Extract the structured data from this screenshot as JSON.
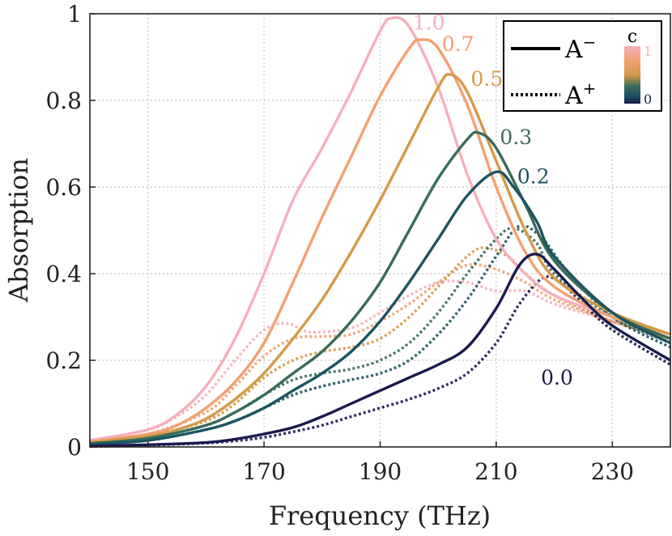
{
  "chart_data": {
    "type": "line",
    "xlabel": "Frequency (THz)",
    "ylabel": "Absorption",
    "xlim": [
      140,
      240
    ],
    "ylim": [
      0,
      1
    ],
    "xticks": [
      150,
      170,
      190,
      210,
      230
    ],
    "yticks": [
      0,
      0.2,
      0.4,
      0.6,
      0.8,
      1
    ],
    "ytick_labels": [
      "0",
      "0.2",
      "0.4",
      "0.6",
      "0.8",
      "1"
    ],
    "grid": true,
    "legend": {
      "position": "top-right",
      "entries": [
        {
          "label": "A",
          "sup": "−",
          "style": "solid"
        },
        {
          "label": "A",
          "sup": "+",
          "style": "dotted"
        }
      ],
      "colorbar": {
        "title": "c",
        "max_label": "1",
        "min_label": "0",
        "colors": [
          "#f5b0bb",
          "#f2a072",
          "#d49a46",
          "#3a6b5a",
          "#1c5461",
          "#1b1a4e"
        ]
      }
    },
    "series": [
      {
        "c": "1.0",
        "label": "1.0",
        "color": "#f5b0bb",
        "minus": [
          [
            140,
            0.015
          ],
          [
            150,
            0.04
          ],
          [
            155,
            0.075
          ],
          [
            160,
            0.14
          ],
          [
            165,
            0.25
          ],
          [
            170,
            0.4
          ],
          [
            175,
            0.57
          ],
          [
            180,
            0.69
          ],
          [
            185,
            0.82
          ],
          [
            190,
            0.96
          ],
          [
            192,
            0.99
          ],
          [
            195,
            0.97
          ],
          [
            200,
            0.83
          ],
          [
            205,
            0.63
          ],
          [
            210,
            0.48
          ],
          [
            215,
            0.4
          ],
          [
            220,
            0.35
          ],
          [
            230,
            0.3
          ],
          [
            240,
            0.26
          ]
        ],
        "plus": [
          [
            140,
            0.015
          ],
          [
            150,
            0.04
          ],
          [
            155,
            0.07
          ],
          [
            160,
            0.12
          ],
          [
            165,
            0.2
          ],
          [
            170,
            0.27
          ],
          [
            174,
            0.285
          ],
          [
            178,
            0.265
          ],
          [
            185,
            0.275
          ],
          [
            190,
            0.31
          ],
          [
            195,
            0.35
          ],
          [
            200,
            0.38
          ],
          [
            205,
            0.38
          ],
          [
            210,
            0.36
          ],
          [
            215,
            0.36
          ],
          [
            220,
            0.33
          ],
          [
            230,
            0.29
          ],
          [
            240,
            0.25
          ]
        ]
      },
      {
        "c": "0.7",
        "label": "0.7",
        "color": "#f2a072",
        "minus": [
          [
            140,
            0.012
          ],
          [
            150,
            0.03
          ],
          [
            155,
            0.05
          ],
          [
            160,
            0.09
          ],
          [
            165,
            0.15
          ],
          [
            170,
            0.24
          ],
          [
            175,
            0.38
          ],
          [
            180,
            0.53
          ],
          [
            185,
            0.67
          ],
          [
            190,
            0.81
          ],
          [
            195,
            0.92
          ],
          [
            197,
            0.94
          ],
          [
            200,
            0.92
          ],
          [
            205,
            0.79
          ],
          [
            210,
            0.6
          ],
          [
            215,
            0.45
          ],
          [
            220,
            0.37
          ],
          [
            230,
            0.3
          ],
          [
            240,
            0.26
          ]
        ],
        "plus": [
          [
            140,
            0.012
          ],
          [
            150,
            0.03
          ],
          [
            160,
            0.08
          ],
          [
            165,
            0.14
          ],
          [
            170,
            0.21
          ],
          [
            175,
            0.25
          ],
          [
            180,
            0.255
          ],
          [
            185,
            0.26
          ],
          [
            190,
            0.29
          ],
          [
            195,
            0.33
          ],
          [
            200,
            0.38
          ],
          [
            205,
            0.42
          ],
          [
            210,
            0.41
          ],
          [
            215,
            0.38
          ],
          [
            220,
            0.34
          ],
          [
            230,
            0.29
          ],
          [
            240,
            0.25
          ]
        ]
      },
      {
        "c": "0.5",
        "label": "0.5",
        "color": "#d49a46",
        "minus": [
          [
            140,
            0.01
          ],
          [
            150,
            0.025
          ],
          [
            155,
            0.04
          ],
          [
            160,
            0.065
          ],
          [
            165,
            0.11
          ],
          [
            170,
            0.17
          ],
          [
            175,
            0.25
          ],
          [
            180,
            0.34
          ],
          [
            185,
            0.45
          ],
          [
            190,
            0.57
          ],
          [
            195,
            0.7
          ],
          [
            200,
            0.83
          ],
          [
            202,
            0.86
          ],
          [
            205,
            0.82
          ],
          [
            210,
            0.66
          ],
          [
            215,
            0.5
          ],
          [
            220,
            0.39
          ],
          [
            230,
            0.31
          ],
          [
            240,
            0.26
          ]
        ],
        "plus": [
          [
            140,
            0.01
          ],
          [
            150,
            0.025
          ],
          [
            160,
            0.06
          ],
          [
            165,
            0.1
          ],
          [
            170,
            0.16
          ],
          [
            175,
            0.2
          ],
          [
            180,
            0.22
          ],
          [
            185,
            0.23
          ],
          [
            190,
            0.25
          ],
          [
            195,
            0.3
          ],
          [
            200,
            0.37
          ],
          [
            205,
            0.44
          ],
          [
            208,
            0.46
          ],
          [
            212,
            0.44
          ],
          [
            215,
            0.4
          ],
          [
            220,
            0.35
          ],
          [
            230,
            0.29
          ],
          [
            240,
            0.25
          ]
        ]
      },
      {
        "c": "0.3",
        "label": "0.3",
        "color": "#3a6b5a",
        "minus": [
          [
            140,
            0.008
          ],
          [
            150,
            0.02
          ],
          [
            160,
            0.05
          ],
          [
            165,
            0.08
          ],
          [
            170,
            0.12
          ],
          [
            175,
            0.17
          ],
          [
            180,
            0.22
          ],
          [
            185,
            0.29
          ],
          [
            190,
            0.38
          ],
          [
            195,
            0.5
          ],
          [
            200,
            0.62
          ],
          [
            205,
            0.71
          ],
          [
            207,
            0.725
          ],
          [
            210,
            0.69
          ],
          [
            215,
            0.56
          ],
          [
            220,
            0.43
          ],
          [
            230,
            0.31
          ],
          [
            240,
            0.25
          ]
        ],
        "plus": [
          [
            140,
            0.008
          ],
          [
            150,
            0.02
          ],
          [
            160,
            0.05
          ],
          [
            165,
            0.08
          ],
          [
            170,
            0.12
          ],
          [
            175,
            0.155
          ],
          [
            180,
            0.17
          ],
          [
            185,
            0.18
          ],
          [
            190,
            0.2
          ],
          [
            195,
            0.24
          ],
          [
            200,
            0.31
          ],
          [
            205,
            0.4
          ],
          [
            210,
            0.48
          ],
          [
            213,
            0.505
          ],
          [
            217,
            0.47
          ],
          [
            220,
            0.4
          ],
          [
            230,
            0.3
          ],
          [
            240,
            0.24
          ]
        ]
      },
      {
        "c": "0.2",
        "label": "0.2",
        "color": "#1c5461",
        "minus": [
          [
            140,
            0.006
          ],
          [
            150,
            0.015
          ],
          [
            160,
            0.04
          ],
          [
            165,
            0.06
          ],
          [
            170,
            0.09
          ],
          [
            175,
            0.13
          ],
          [
            180,
            0.17
          ],
          [
            185,
            0.22
          ],
          [
            190,
            0.29
          ],
          [
            195,
            0.38
          ],
          [
            200,
            0.48
          ],
          [
            205,
            0.58
          ],
          [
            210,
            0.635
          ],
          [
            213,
            0.6
          ],
          [
            217,
            0.52
          ],
          [
            220,
            0.44
          ],
          [
            230,
            0.31
          ],
          [
            240,
            0.24
          ]
        ],
        "plus": [
          [
            140,
            0.006
          ],
          [
            150,
            0.015
          ],
          [
            160,
            0.04
          ],
          [
            165,
            0.06
          ],
          [
            170,
            0.09
          ],
          [
            175,
            0.12
          ],
          [
            180,
            0.14
          ],
          [
            185,
            0.155
          ],
          [
            190,
            0.17
          ],
          [
            195,
            0.2
          ],
          [
            200,
            0.26
          ],
          [
            205,
            0.34
          ],
          [
            210,
            0.44
          ],
          [
            214,
            0.51
          ],
          [
            218,
            0.48
          ],
          [
            222,
            0.41
          ],
          [
            230,
            0.3
          ],
          [
            240,
            0.23
          ]
        ]
      },
      {
        "c": "0.0",
        "label": "0.0",
        "color": "#1b1a4e",
        "minus": [
          [
            140,
            0.002
          ],
          [
            150,
            0.005
          ],
          [
            160,
            0.01
          ],
          [
            165,
            0.018
          ],
          [
            170,
            0.03
          ],
          [
            175,
            0.045
          ],
          [
            180,
            0.07
          ],
          [
            185,
            0.1
          ],
          [
            190,
            0.13
          ],
          [
            195,
            0.16
          ],
          [
            200,
            0.19
          ],
          [
            205,
            0.23
          ],
          [
            210,
            0.32
          ],
          [
            214,
            0.42
          ],
          [
            217,
            0.445
          ],
          [
            220,
            0.41
          ],
          [
            225,
            0.34
          ],
          [
            230,
            0.28
          ],
          [
            240,
            0.2
          ]
        ],
        "plus": [
          [
            140,
            0.001
          ],
          [
            150,
            0.004
          ],
          [
            160,
            0.009
          ],
          [
            165,
            0.014
          ],
          [
            170,
            0.022
          ],
          [
            175,
            0.035
          ],
          [
            180,
            0.05
          ],
          [
            185,
            0.07
          ],
          [
            190,
            0.09
          ],
          [
            195,
            0.11
          ],
          [
            200,
            0.135
          ],
          [
            205,
            0.17
          ],
          [
            210,
            0.24
          ],
          [
            214,
            0.33
          ],
          [
            218,
            0.39
          ],
          [
            221,
            0.38
          ],
          [
            225,
            0.33
          ],
          [
            230,
            0.27
          ],
          [
            240,
            0.19
          ]
        ]
      }
    ]
  }
}
